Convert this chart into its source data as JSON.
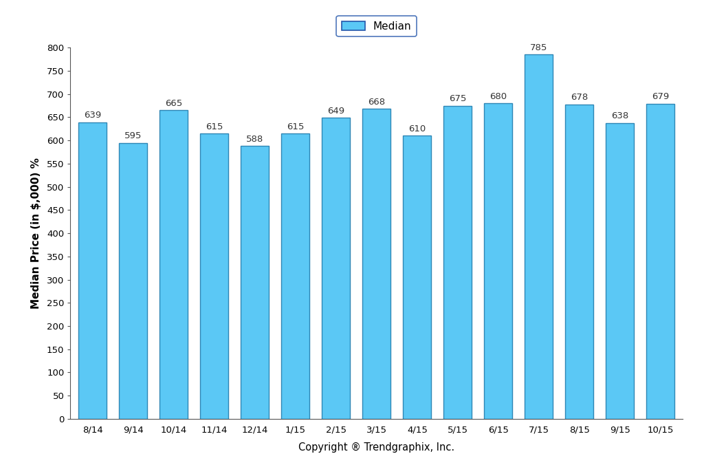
{
  "categories": [
    "8/14",
    "9/14",
    "10/14",
    "11/14",
    "12/14",
    "1/15",
    "2/15",
    "3/15",
    "4/15",
    "5/15",
    "6/15",
    "7/15",
    "8/15",
    "9/15",
    "10/15"
  ],
  "values": [
    639,
    595,
    665,
    615,
    588,
    615,
    649,
    668,
    610,
    675,
    680,
    785,
    678,
    638,
    679
  ],
  "bar_color": "#5BC8F5",
  "bar_edge_color": "#2E86B5",
  "ylabel": "Median Price (in $,000) %",
  "xlabel": "Copyright ® Trendgraphix, Inc.",
  "ylim": [
    0,
    800
  ],
  "yticks": [
    0,
    50,
    100,
    150,
    200,
    250,
    300,
    350,
    400,
    450,
    500,
    550,
    600,
    650,
    700,
    750,
    800
  ],
  "legend_label": "Median",
  "legend_edge_color": "#2255aa",
  "background_color": "#ffffff",
  "bar_width": 0.7,
  "label_fontsize": 9.5,
  "axis_label_fontsize": 11,
  "tick_fontsize": 9.5,
  "xlabel_fontsize": 10.5
}
